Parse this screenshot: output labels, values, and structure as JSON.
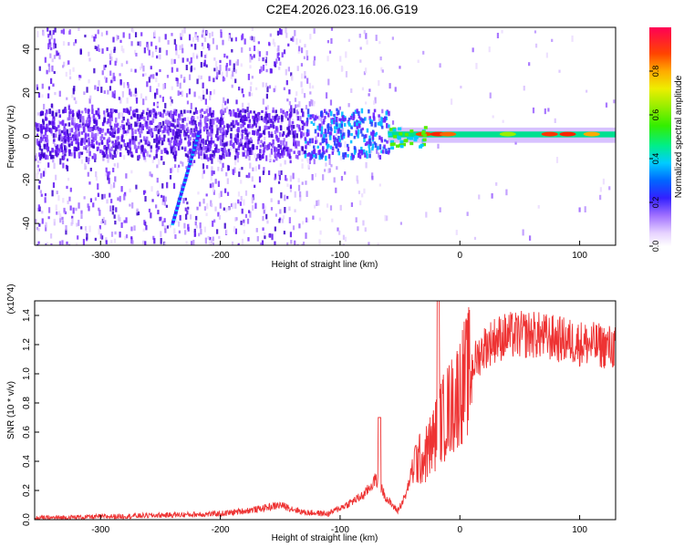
{
  "title": "C2E4.2026.023.16.06.G19",
  "chart_data": [
    {
      "type": "heatmap",
      "xlabel": "Height of straight line (km)",
      "ylabel": "Frequency (Hz)",
      "xlim": [
        -355,
        130
      ],
      "ylim": [
        -50,
        50
      ],
      "xticks": [
        -300,
        -200,
        -100,
        0,
        100
      ],
      "yticks": [
        -40,
        -20,
        0,
        20,
        40
      ],
      "colorbar": {
        "label": "Normalized spectral amplitude",
        "range": [
          0,
          1
        ],
        "ticks": [
          0.0,
          0.2,
          0.4,
          0.6,
          0.8
        ]
      },
      "features": [
        {
          "kind": "main_tone",
          "x_range": [
            -60,
            130
          ],
          "frequency_hz": 1
        },
        {
          "kind": "broad_cluster",
          "x_range": [
            -130,
            -60
          ],
          "frequency_hz": 0
        },
        {
          "kind": "slanted_streak",
          "x_range": [
            -240,
            -218
          ],
          "frequency_hz_range": [
            -40,
            2
          ]
        }
      ]
    },
    {
      "type": "line",
      "xlabel": "Height of straight line (km)",
      "ylabel": "SNR (10 * v/v)",
      "y_multiplier": "(x10^4)",
      "xlim": [
        -355,
        130
      ],
      "ylim": [
        0,
        1.5
      ],
      "xticks": [
        -300,
        -200,
        -100,
        0,
        100
      ],
      "yticks": [
        0.0,
        0.2,
        0.4,
        0.6,
        0.8,
        1.0,
        1.2,
        1.4
      ],
      "color": "#ee3333",
      "series": [
        {
          "x": [
            -355,
            -300,
            -250,
            -200,
            -170,
            -150,
            -130,
            -110,
            -95,
            -80,
            -70,
            -60,
            -52,
            -45,
            -38,
            -30,
            -22,
            -15,
            -10,
            -5,
            0,
            10,
            20,
            30,
            40,
            60,
            80,
            100,
            120,
            130
          ],
          "y": [
            0.01,
            0.02,
            0.03,
            0.04,
            0.07,
            0.1,
            0.05,
            0.04,
            0.1,
            0.17,
            0.28,
            0.13,
            0.06,
            0.17,
            0.4,
            0.42,
            0.55,
            0.68,
            0.75,
            0.8,
            0.9,
            1.05,
            1.18,
            1.24,
            1.26,
            1.27,
            1.24,
            1.21,
            1.19,
            1.18
          ]
        }
      ],
      "annotations": [
        {
          "x": -67,
          "y": 0.7,
          "note": "spike"
        },
        {
          "x": -18,
          "y": 1.5,
          "note": "spike"
        }
      ]
    }
  ]
}
